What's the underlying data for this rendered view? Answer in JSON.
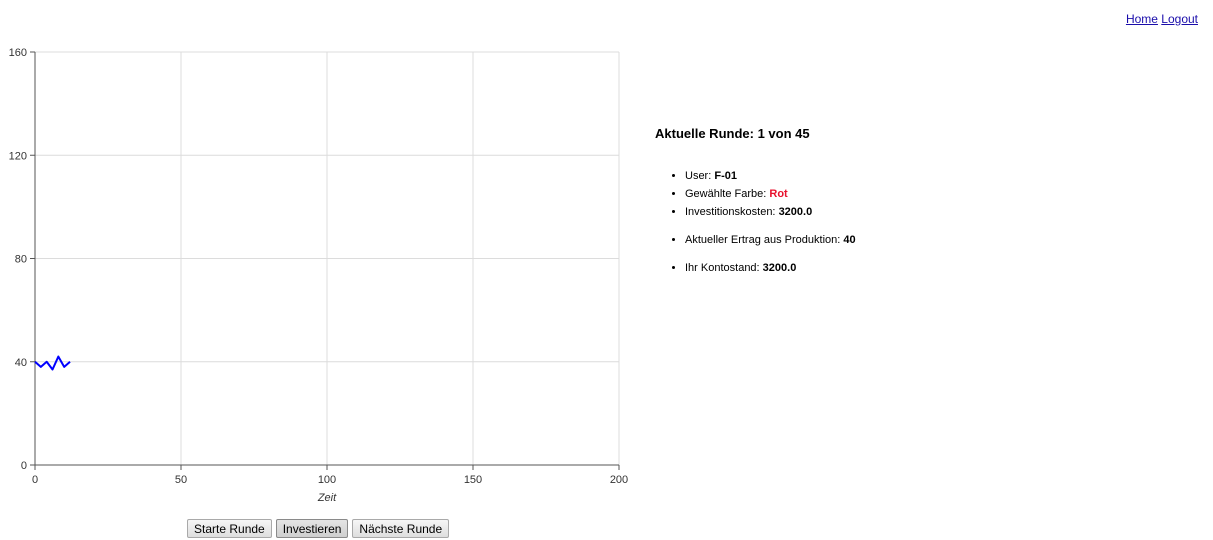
{
  "nav": {
    "home": "Home",
    "logout": "Logout"
  },
  "chart_data": {
    "type": "line",
    "xlabel": "Zeit",
    "ylabel": "",
    "xlim": [
      0,
      200
    ],
    "ylim": [
      0,
      160
    ],
    "x_ticks": [
      0,
      50,
      100,
      150,
      200
    ],
    "y_ticks": [
      0,
      40,
      80,
      120,
      160
    ],
    "grid": true,
    "series": [
      {
        "color": "#0000ff",
        "x": [
          0,
          2,
          4,
          6,
          8,
          10,
          12
        ],
        "y": [
          40,
          38,
          40,
          37,
          42,
          38,
          40
        ]
      }
    ]
  },
  "buttons": {
    "start": "Starte Runde",
    "invest": "Investieren",
    "next": "Nächste Runde"
  },
  "info": {
    "round_title": "Aktuelle Runde: 1 von 45",
    "user_label": "User: ",
    "user_value": "F-01",
    "color_label": "Gewählte Farbe: ",
    "color_value": "Rot",
    "color_value_hex": "#e8112d",
    "invest_cost_label": "Investitionskosten: ",
    "invest_cost_value": "3200.0",
    "yield_label": "Aktueller Ertrag aus Produktion: ",
    "yield_value": "40",
    "balance_label": "Ihr Kontostand: ",
    "balance_value": "3200.0"
  }
}
